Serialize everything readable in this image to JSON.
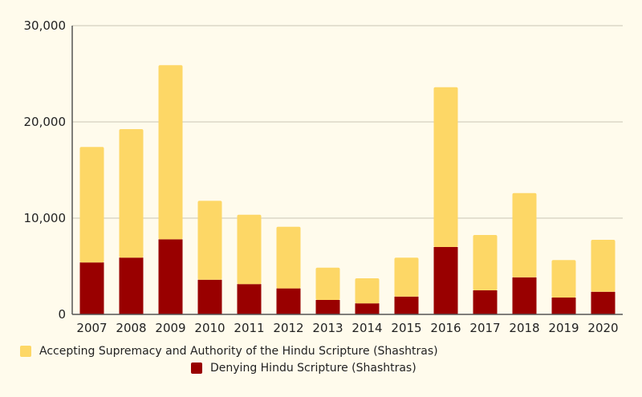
{
  "chart_data": {
    "type": "bar",
    "stacked": true,
    "categories": [
      "2007",
      "2008",
      "2009",
      "2010",
      "2011",
      "2012",
      "2013",
      "2014",
      "2015",
      "2016",
      "2017",
      "2018",
      "2019",
      "2020"
    ],
    "series": [
      {
        "name": "Denying Hindu Scripture (Shashtras)",
        "color": "#990000",
        "values": [
          5400,
          5900,
          7800,
          3600,
          3150,
          2700,
          1500,
          1150,
          1850,
          7000,
          2500,
          3850,
          1750,
          2350
        ]
      },
      {
        "name": "Accepting Supremacy and Authority of the Hindu Scripture (Shashtras)",
        "color": "#fdd766",
        "values": [
          12000,
          13350,
          18100,
          8200,
          7200,
          6400,
          3350,
          2600,
          4050,
          16600,
          5750,
          8750,
          3900,
          5400
        ]
      }
    ],
    "ylim": [
      0,
      30000
    ],
    "yticks": [
      "0",
      "10,000",
      "20,000",
      "30,000"
    ],
    "grid": true,
    "legend": "bottom"
  }
}
